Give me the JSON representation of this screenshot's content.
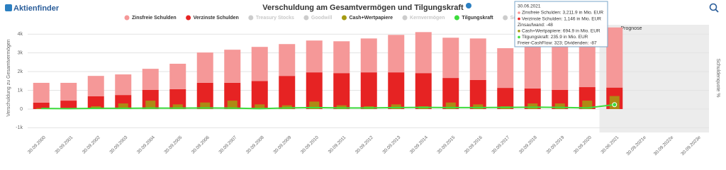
{
  "logo": "Aktienfinder",
  "chart_data": {
    "type": "bar",
    "title": "Verschuldung am Gesamtvermögen und Tilgungskraft",
    "y_label": "Verschuldung zu Gesamtvermögen",
    "y2_label": "Schuldenquote %",
    "annotation": "Prognose",
    "categories": [
      "30.09.2000",
      "30.09.2001",
      "30.09.2002",
      "30.09.2003",
      "30.09.2004",
      "30.09.2005",
      "30.09.2006",
      "30.09.2007",
      "30.09.2008",
      "30.09.2009",
      "30.09.2010",
      "30.09.2011",
      "30.09.2012",
      "30.09.2013",
      "30.09.2014",
      "30.09.2015",
      "30.09.2016",
      "30.09.2017",
      "30.09.2018",
      "30.09.2019",
      "30.09.2020",
      "30.06.2021",
      "30.09.2021e",
      "30.09.2022e",
      "30.09.2023e"
    ],
    "series": [
      {
        "name": "Verzinste Schulden",
        "color": "#e62323",
        "type": "bar",
        "stack": "debt",
        "values": [
          340,
          450,
          680,
          750,
          1020,
          1060,
          1400,
          1400,
          1500,
          1770,
          1960,
          1920,
          1960,
          1960,
          1920,
          1660,
          1550,
          1130,
          1100,
          1020,
          1170,
          1146,
          null,
          null,
          null
        ]
      },
      {
        "name": "Zinsfreie Schulden",
        "color": "#f59898",
        "type": "bar",
        "stack": "debt",
        "values": [
          1060,
          950,
          1090,
          1100,
          1130,
          1360,
          1620,
          1770,
          1820,
          1700,
          1700,
          1700,
          1810,
          2000,
          2190,
          2150,
          2220,
          2120,
          2300,
          2340,
          2380,
          3211.9,
          null,
          null,
          null
        ]
      },
      {
        "name": "Cash+Wertpapiere",
        "color": "#a59b12",
        "type": "bar",
        "values": [
          50,
          50,
          150,
          300,
          450,
          250,
          350,
          450,
          250,
          200,
          400,
          200,
          150,
          250,
          150,
          350,
          250,
          150,
          300,
          300,
          450,
          694.9,
          null,
          null,
          null
        ]
      },
      {
        "name": "Tilgungskraft",
        "color": "#3ddc3d",
        "type": "line",
        "values": [
          30,
          20,
          40,
          40,
          50,
          50,
          60,
          50,
          20,
          60,
          80,
          60,
          60,
          80,
          90,
          80,
          80,
          90,
          100,
          90,
          60,
          235.9,
          null,
          null,
          null
        ]
      }
    ],
    "legend_order": [
      1,
      0,
      "Treasury Stocks",
      "Goodwill",
      2,
      "Kernvermögen",
      3,
      "Schuldenquote"
    ],
    "inactive_color": "#cccccc",
    "ylim": [
      -1250,
      4500
    ],
    "yticks": [
      {
        "value": -1000,
        "label": "-1k"
      },
      0,
      {
        "value": 1000,
        "label": "1k"
      },
      {
        "value": 2000,
        "label": "2k"
      },
      {
        "value": 3000,
        "label": "3k"
      },
      {
        "value": 4000,
        "label": "4k"
      }
    ],
    "grid": true,
    "tooltip": {
      "date": "30.06.2021",
      "lines": [
        "Zinsfreie Schulden: 3,211.9 in Mio. EUR",
        "Verzinste Schulden: 1,146 in Mio. EUR",
        "Zinsaufwand: -48",
        "Cash+Wertpapiere: 694.9 in Mio. EUR",
        "Tilgungskraft: 235.9 in Mio. EUR",
        "Freier-CashFlow: 323; Dividenden: -87"
      ]
    }
  }
}
